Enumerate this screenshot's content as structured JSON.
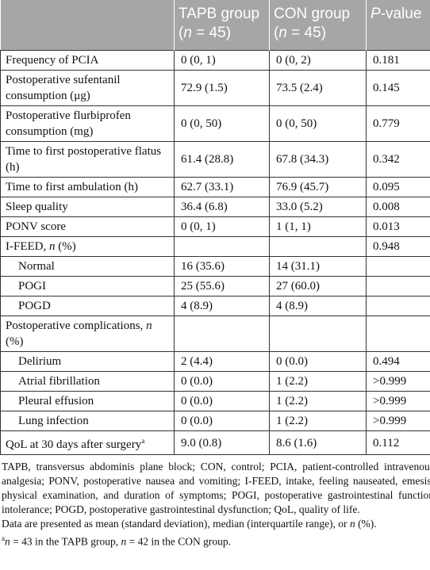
{
  "table": {
    "header": [
      null,
      [
        {
          "br": "TAPB group"
        },
        "(",
        {
          "i": "n"
        },
        " = 45)"
      ],
      [
        {
          "br": "CON group"
        },
        "(",
        {
          "i": "n"
        },
        " = 45)"
      ],
      [
        {
          "i": "P"
        },
        "-value"
      ]
    ],
    "rows": [
      {
        "label": [
          "Frequency of PCIA"
        ],
        "values": [
          "0 (0, 1)",
          "0 (0, 2)",
          "0.181"
        ]
      },
      {
        "label": [
          "Postoperative sufentanil consumption (μg)"
        ],
        "values": [
          "72.9 (1.5)",
          "73.5 (2.4)",
          "0.145"
        ]
      },
      {
        "label": [
          "Postoperative flurbiprofen consumption (mg)"
        ],
        "values": [
          "0 (0, 50)",
          "0 (0, 50)",
          "0.779"
        ]
      },
      {
        "label": [
          "Time to first postoperative flatus (h)"
        ],
        "values": [
          "61.4 (28.8)",
          "67.8 (34.3)",
          "0.342"
        ]
      },
      {
        "label": [
          "Time to first ambulation (h)"
        ],
        "values": [
          "62.7 (33.1)",
          "76.9 (45.7)",
          "0.095"
        ]
      },
      {
        "label": [
          "Sleep quality"
        ],
        "values": [
          "36.4 (6.8)",
          "33.0 (5.2)",
          "0.008"
        ]
      },
      {
        "label": [
          "PONV score"
        ],
        "values": [
          "0 (0, 1)",
          "1 (1, 1)",
          "0.013"
        ]
      },
      {
        "label": [
          "I-FEED, ",
          {
            "i": "n"
          },
          " (%)"
        ],
        "values": [
          null,
          null,
          "0.948"
        ]
      },
      {
        "label": [
          "Normal"
        ],
        "indent": true,
        "values": [
          "16 (35.6)",
          "14 (31.1)",
          null
        ]
      },
      {
        "label": [
          "POGI"
        ],
        "indent": true,
        "values": [
          "25 (55.6)",
          "27 (60.0)",
          null
        ]
      },
      {
        "label": [
          "POGD"
        ],
        "indent": true,
        "values": [
          "4 (8.9)",
          "4 (8.9)",
          null
        ]
      },
      {
        "label": [
          "Postoperative complications, ",
          {
            "i": "n"
          },
          " (%)"
        ],
        "values": [
          null,
          null,
          null
        ]
      },
      {
        "label": [
          "Delirium"
        ],
        "indent": true,
        "values": [
          "2 (4.4)",
          "0 (0.0)",
          "0.494"
        ]
      },
      {
        "label": [
          "Atrial fibrillation"
        ],
        "indent": true,
        "values": [
          "0 (0.0)",
          "1 (2.2)",
          ">0.999"
        ]
      },
      {
        "label": [
          "Pleural effusion"
        ],
        "indent": true,
        "values": [
          "0 (0.0)",
          "1 (2.2)",
          ">0.999"
        ]
      },
      {
        "label": [
          "Lung infection"
        ],
        "indent": true,
        "values": [
          "0 (0.0)",
          "1 (2.2)",
          ">0.999"
        ]
      },
      {
        "label": [
          "QoL at 30 days after surgery",
          {
            "sup": "a"
          }
        ],
        "values": [
          "9.0 (0.8)",
          "8.6 (1.6)",
          "0.112"
        ]
      }
    ],
    "notes": [
      [
        "TAPB, transversus abdominis plane block; CON, control; PCIA, patient-controlled intravenous analgesia; PONV, postoperative nausea and vomiting; I-FEED, intake, feeling nauseated, emesis, physical examination, and duration of symptoms; POGI, postoperative gastrointestinal function intolerance; POGD, postoperative gastrointestinal dysfunction; QoL, quality of life."
      ],
      [
        "Data are presented as mean (standard deviation), median (interquartile range), or ",
        {
          "i": "n"
        },
        " (%)."
      ],
      [
        {
          "sup": "a"
        },
        {
          "i": "n"
        },
        " = 43 in the TAPB group, ",
        {
          "i": "n"
        },
        " = 42 in the CON group."
      ]
    ]
  }
}
